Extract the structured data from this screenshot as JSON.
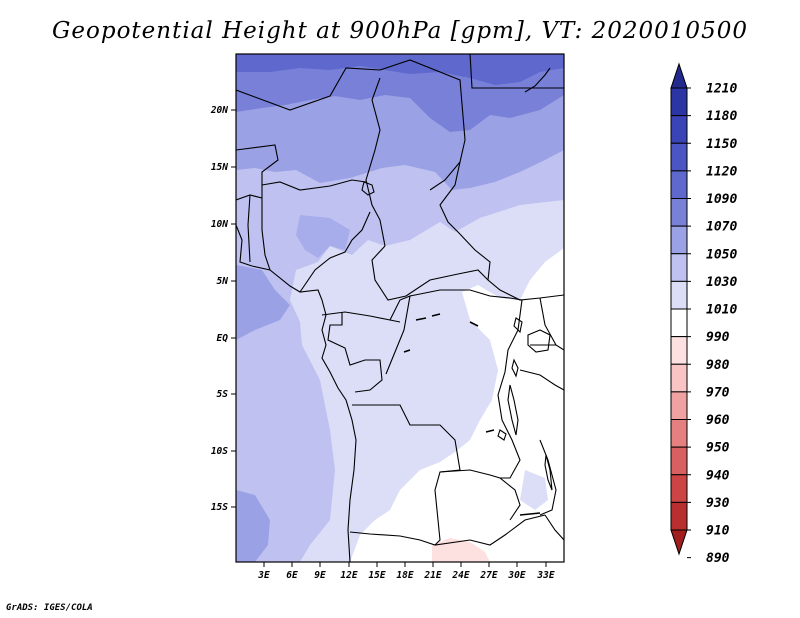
{
  "title": "Geopotential Height at 900hPa [gpm], VT: 2020010500",
  "credit": "GrADS: IGES/COLA",
  "map": {
    "lat_labels": [
      "20N",
      "15N",
      "10N",
      "5N",
      "EQ",
      "5S",
      "10S",
      "15S"
    ],
    "lon_labels": [
      "3E",
      "6E",
      "9E",
      "12E",
      "15E",
      "18E",
      "21E",
      "24E",
      "27E",
      "30E",
      "33E"
    ]
  },
  "colorbar": {
    "levels": [
      "1210",
      "1180",
      "1150",
      "1120",
      "1090",
      "1070",
      "1050",
      "1030",
      "1010",
      "990",
      "980",
      "970",
      "960",
      "950",
      "940",
      "930",
      "910",
      "890"
    ],
    "colors": [
      "#232a8e",
      "#2c35a4",
      "#3a44b6",
      "#4b55c4",
      "#5e68cd",
      "#7880d8",
      "#9ba1e5",
      "#bfc2f0",
      "#dcdef7",
      "#ffffff",
      "#fde0e0",
      "#f8c4c4",
      "#f0a2a2",
      "#e58080",
      "#d96060",
      "#cc4444",
      "#b92e2e",
      "#a01e1e"
    ]
  }
}
